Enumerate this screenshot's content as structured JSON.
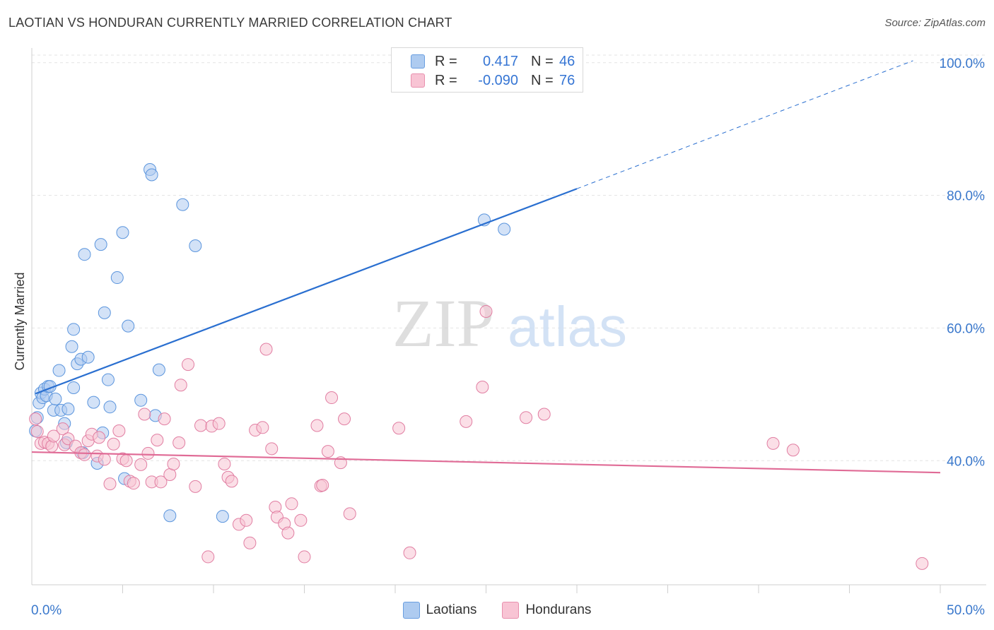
{
  "header": {
    "title": "LAOTIAN VS HONDURAN CURRENTLY MARRIED CORRELATION CHART",
    "source": "Source: ZipAtlas.com"
  },
  "watermark": {
    "zip": "ZIP",
    "atlas": "atlas"
  },
  "legend": {
    "rows": [
      {
        "swatch_fill": "#aecbf0",
        "swatch_stroke": "#6a9ee0",
        "r_label": "R =",
        "r_value": "0.417",
        "n_label": "N =",
        "n_value": "46"
      },
      {
        "swatch_fill": "#f8c4d4",
        "swatch_stroke": "#e890ae",
        "r_label": "R =",
        "r_value": "-0.090",
        "n_label": "N =",
        "n_value": "76"
      }
    ],
    "value_color": "#3575d4",
    "series_names": [
      "Laotians",
      "Hondurans"
    ]
  },
  "chart_data": {
    "type": "scatter",
    "title": "LAOTIAN VS HONDURAN CURRENTLY MARRIED CORRELATION CHART",
    "xlabel": "",
    "ylabel": "Currently Married",
    "xlim": [
      0,
      50
    ],
    "ylim": [
      21.5,
      102
    ],
    "x_tick_labels": [
      "0.0%",
      "50.0%"
    ],
    "y_ticks": [
      40,
      60,
      80,
      100
    ],
    "y_tick_labels": [
      "40.0%",
      "60.0%",
      "80.0%",
      "100.0%"
    ],
    "grid": true,
    "legend_position": "top-center",
    "series": [
      {
        "name": "Laotians",
        "color": "#5b95dd",
        "fill": "#aecbf0",
        "r": 0.417,
        "n": 46,
        "trend": {
          "x": [
            0.2,
            30.0
          ],
          "y": [
            50.1,
            81.0
          ],
          "dashed_to": [
            48.5,
            100.3
          ]
        },
        "points": [
          [
            0.2,
            44.5
          ],
          [
            0.3,
            46.5
          ],
          [
            0.4,
            48.7
          ],
          [
            0.5,
            50.2
          ],
          [
            0.6,
            49.5
          ],
          [
            0.7,
            50.8
          ],
          [
            0.8,
            49.8
          ],
          [
            0.9,
            51.2
          ],
          [
            1.0,
            51.2
          ],
          [
            1.2,
            47.6
          ],
          [
            1.3,
            49.3
          ],
          [
            1.5,
            53.6
          ],
          [
            1.6,
            47.6
          ],
          [
            1.8,
            45.6
          ],
          [
            1.9,
            42.7
          ],
          [
            2.0,
            47.8
          ],
          [
            2.2,
            57.2
          ],
          [
            2.3,
            51.0
          ],
          [
            2.3,
            59.8
          ],
          [
            2.5,
            54.6
          ],
          [
            2.7,
            55.3
          ],
          [
            2.8,
            41.2
          ],
          [
            2.9,
            71.1
          ],
          [
            3.1,
            55.6
          ],
          [
            3.4,
            48.8
          ],
          [
            3.6,
            39.6
          ],
          [
            3.8,
            72.6
          ],
          [
            3.9,
            44.2
          ],
          [
            4.0,
            62.3
          ],
          [
            4.2,
            52.2
          ],
          [
            4.3,
            48.1
          ],
          [
            4.7,
            67.6
          ],
          [
            5.0,
            74.4
          ],
          [
            5.1,
            37.3
          ],
          [
            5.3,
            60.3
          ],
          [
            6.0,
            49.1
          ],
          [
            6.5,
            83.9
          ],
          [
            6.6,
            83.1
          ],
          [
            6.8,
            46.8
          ],
          [
            7.0,
            53.7
          ],
          [
            7.6,
            31.7
          ],
          [
            8.3,
            78.6
          ],
          [
            9.0,
            72.4
          ],
          [
            10.5,
            31.6
          ],
          [
            24.9,
            76.3
          ],
          [
            26.0,
            74.9
          ]
        ]
      },
      {
        "name": "Hondurans",
        "color": "#e17ea2",
        "fill": "#f8c4d4",
        "r": -0.09,
        "n": 76,
        "trend": {
          "x": [
            0.0,
            50.0
          ],
          "y": [
            41.3,
            38.2
          ]
        },
        "points": [
          [
            0.2,
            46.3
          ],
          [
            0.3,
            44.4
          ],
          [
            0.5,
            42.6
          ],
          [
            0.7,
            42.8
          ],
          [
            0.9,
            42.6
          ],
          [
            1.1,
            42.2
          ],
          [
            1.2,
            43.7
          ],
          [
            1.7,
            44.8
          ],
          [
            1.8,
            42.4
          ],
          [
            2.0,
            43.3
          ],
          [
            2.4,
            42.2
          ],
          [
            2.7,
            41.2
          ],
          [
            2.9,
            40.9
          ],
          [
            3.1,
            43.0
          ],
          [
            3.3,
            44.0
          ],
          [
            3.6,
            40.7
          ],
          [
            3.7,
            43.5
          ],
          [
            4.0,
            40.2
          ],
          [
            4.3,
            36.5
          ],
          [
            4.5,
            42.5
          ],
          [
            4.8,
            44.5
          ],
          [
            5.0,
            40.3
          ],
          [
            5.2,
            40.0
          ],
          [
            5.4,
            36.9
          ],
          [
            5.6,
            36.6
          ],
          [
            6.0,
            39.4
          ],
          [
            6.2,
            47.0
          ],
          [
            6.4,
            41.1
          ],
          [
            6.6,
            36.8
          ],
          [
            6.9,
            43.1
          ],
          [
            7.1,
            36.8
          ],
          [
            7.3,
            46.3
          ],
          [
            7.6,
            37.9
          ],
          [
            7.8,
            39.5
          ],
          [
            8.1,
            42.7
          ],
          [
            8.2,
            51.4
          ],
          [
            8.6,
            54.5
          ],
          [
            9.0,
            36.1
          ],
          [
            9.3,
            45.3
          ],
          [
            9.7,
            25.5
          ],
          [
            9.9,
            45.2
          ],
          [
            10.3,
            45.6
          ],
          [
            10.6,
            39.5
          ],
          [
            10.8,
            37.5
          ],
          [
            11.0,
            36.9
          ],
          [
            11.4,
            30.4
          ],
          [
            11.8,
            31.0
          ],
          [
            12.0,
            27.6
          ],
          [
            12.3,
            44.6
          ],
          [
            12.7,
            45.0
          ],
          [
            12.9,
            56.8
          ],
          [
            13.2,
            41.8
          ],
          [
            13.4,
            33.0
          ],
          [
            13.5,
            31.5
          ],
          [
            13.9,
            30.5
          ],
          [
            14.1,
            29.1
          ],
          [
            14.3,
            33.5
          ],
          [
            14.8,
            31.0
          ],
          [
            15.0,
            25.5
          ],
          [
            15.7,
            45.3
          ],
          [
            15.9,
            36.2
          ],
          [
            16.0,
            36.3
          ],
          [
            16.3,
            41.4
          ],
          [
            16.5,
            49.5
          ],
          [
            17.0,
            39.7
          ],
          [
            17.2,
            46.3
          ],
          [
            17.5,
            32.0
          ],
          [
            20.2,
            44.9
          ],
          [
            20.8,
            26.1
          ],
          [
            23.9,
            45.9
          ],
          [
            24.8,
            51.1
          ],
          [
            25.0,
            62.5
          ],
          [
            27.2,
            46.5
          ],
          [
            28.2,
            47.0
          ],
          [
            40.8,
            42.6
          ],
          [
            41.9,
            41.6
          ],
          [
            49.0,
            24.5
          ]
        ]
      }
    ]
  }
}
